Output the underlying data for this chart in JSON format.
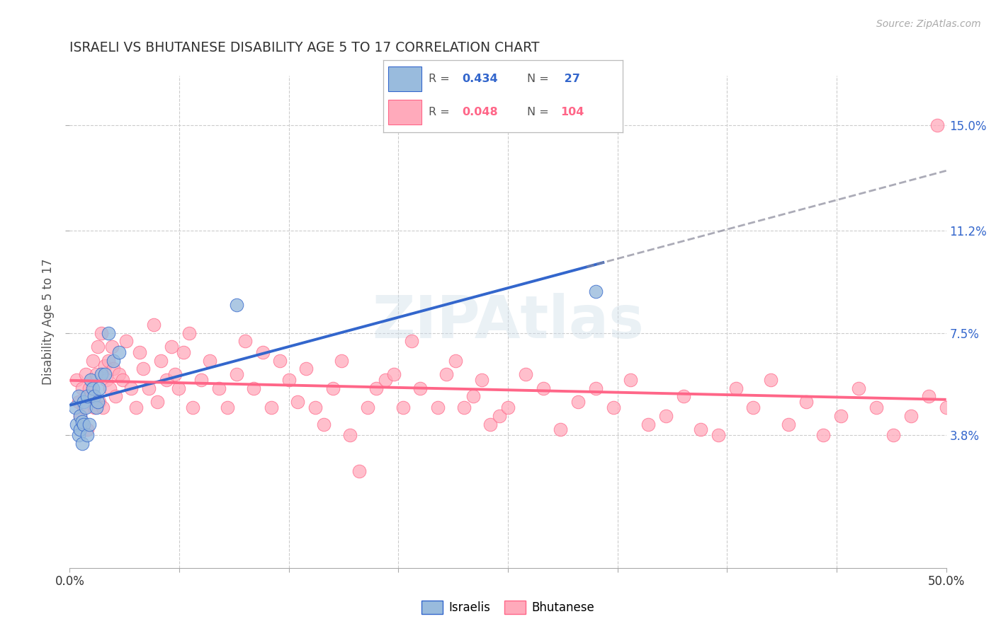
{
  "title": "ISRAELI VS BHUTANESE DISABILITY AGE 5 TO 17 CORRELATION CHART",
  "source": "Source: ZipAtlas.com",
  "ylabel": "Disability Age 5 to 17",
  "xmin": 0.0,
  "xmax": 0.5,
  "ymin": -0.01,
  "ymax": 0.168,
  "ytick_vals": [
    0.038,
    0.075,
    0.112,
    0.15
  ],
  "ytick_labels": [
    "3.8%",
    "7.5%",
    "11.2%",
    "15.0%"
  ],
  "xtick_vals": [
    0.0,
    0.0625,
    0.125,
    0.1875,
    0.25,
    0.3125,
    0.375,
    0.4375,
    0.5
  ],
  "israeli_color": "#99bbdd",
  "bhutanese_color": "#ffaabb",
  "line_israeli_color": "#3366cc",
  "line_bhutanese_color": "#ff6688",
  "israelis_x": [
    0.003,
    0.004,
    0.005,
    0.005,
    0.006,
    0.006,
    0.007,
    0.007,
    0.008,
    0.008,
    0.009,
    0.01,
    0.01,
    0.011,
    0.012,
    0.013,
    0.014,
    0.015,
    0.016,
    0.017,
    0.018,
    0.02,
    0.022,
    0.025,
    0.028,
    0.095,
    0.3
  ],
  "israelis_y": [
    0.048,
    0.042,
    0.038,
    0.052,
    0.04,
    0.045,
    0.035,
    0.043,
    0.05,
    0.042,
    0.048,
    0.038,
    0.052,
    0.042,
    0.058,
    0.055,
    0.052,
    0.048,
    0.05,
    0.055,
    0.06,
    0.06,
    0.075,
    0.065,
    0.068,
    0.085,
    0.09
  ],
  "bhutanese_x": [
    0.004,
    0.005,
    0.006,
    0.007,
    0.008,
    0.009,
    0.01,
    0.011,
    0.012,
    0.013,
    0.014,
    0.015,
    0.016,
    0.017,
    0.018,
    0.019,
    0.02,
    0.021,
    0.022,
    0.023,
    0.024,
    0.025,
    0.026,
    0.028,
    0.03,
    0.032,
    0.035,
    0.038,
    0.04,
    0.042,
    0.045,
    0.048,
    0.05,
    0.052,
    0.055,
    0.058,
    0.06,
    0.062,
    0.065,
    0.068,
    0.07,
    0.075,
    0.08,
    0.085,
    0.09,
    0.095,
    0.1,
    0.105,
    0.11,
    0.115,
    0.12,
    0.125,
    0.13,
    0.135,
    0.14,
    0.145,
    0.15,
    0.155,
    0.16,
    0.165,
    0.17,
    0.175,
    0.18,
    0.185,
    0.19,
    0.195,
    0.2,
    0.21,
    0.215,
    0.22,
    0.225,
    0.23,
    0.235,
    0.24,
    0.245,
    0.25,
    0.26,
    0.27,
    0.28,
    0.29,
    0.3,
    0.31,
    0.32,
    0.33,
    0.34,
    0.35,
    0.36,
    0.37,
    0.38,
    0.39,
    0.4,
    0.41,
    0.42,
    0.43,
    0.44,
    0.45,
    0.46,
    0.47,
    0.48,
    0.49,
    0.495,
    0.5
  ],
  "bhutanese_y": [
    0.058,
    0.05,
    0.045,
    0.055,
    0.048,
    0.06,
    0.04,
    0.055,
    0.052,
    0.065,
    0.048,
    0.06,
    0.07,
    0.05,
    0.075,
    0.048,
    0.063,
    0.058,
    0.065,
    0.055,
    0.07,
    0.062,
    0.052,
    0.06,
    0.058,
    0.072,
    0.055,
    0.048,
    0.068,
    0.062,
    0.055,
    0.078,
    0.05,
    0.065,
    0.058,
    0.07,
    0.06,
    0.055,
    0.068,
    0.075,
    0.048,
    0.058,
    0.065,
    0.055,
    0.048,
    0.06,
    0.072,
    0.055,
    0.068,
    0.048,
    0.065,
    0.058,
    0.05,
    0.062,
    0.048,
    0.042,
    0.055,
    0.065,
    0.038,
    0.025,
    0.048,
    0.055,
    0.058,
    0.06,
    0.048,
    0.072,
    0.055,
    0.048,
    0.06,
    0.065,
    0.048,
    0.052,
    0.058,
    0.042,
    0.045,
    0.048,
    0.06,
    0.055,
    0.04,
    0.05,
    0.055,
    0.048,
    0.058,
    0.042,
    0.045,
    0.052,
    0.04,
    0.038,
    0.055,
    0.048,
    0.058,
    0.042,
    0.05,
    0.038,
    0.045,
    0.055,
    0.048,
    0.038,
    0.045,
    0.052,
    0.15,
    0.048
  ],
  "isr_line_x0": 0.0,
  "isr_line_x1": 0.3,
  "isr_line_x_dash_start": 0.3,
  "isr_line_x_dash_end": 0.5,
  "bhu_line_x0": 0.0,
  "bhu_line_x1": 0.5,
  "watermark": "ZIPAtlas"
}
